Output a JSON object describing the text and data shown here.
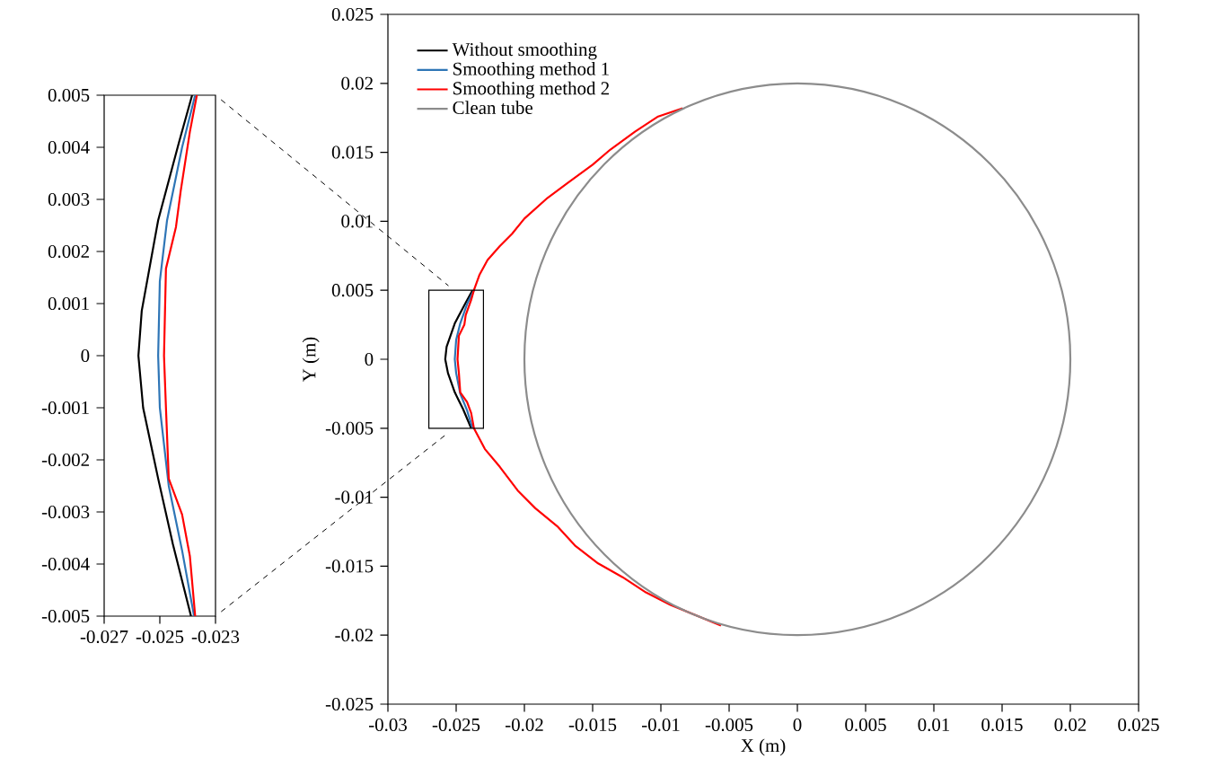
{
  "chart_data": [
    {
      "type": "line",
      "xlabel": "X (m)",
      "ylabel": "Y (m)",
      "xlim": [
        -0.03,
        0.025
      ],
      "ylim": [
        -0.025,
        0.025
      ],
      "xticks": [
        -0.03,
        -0.025,
        -0.02,
        -0.015,
        -0.01,
        -0.005,
        0,
        0.005,
        0.01,
        0.015,
        0.02,
        0.025
      ],
      "yticks": [
        -0.025,
        -0.02,
        -0.015,
        -0.01,
        -0.005,
        0,
        0.005,
        0.01,
        0.015,
        0.02,
        0.025
      ],
      "legend": "top left",
      "grid": false,
      "series": [
        {
          "name": "Without smoothing",
          "color": "#000000",
          "x": [
            -0.0238,
            -0.0243,
            -0.0251,
            -0.0257,
            -0.0258,
            -0.0256,
            -0.0251,
            -0.0245,
            -0.0239
          ],
          "values": [
            0.005,
            0.0041,
            0.0026,
            0.0009,
            0,
            -0.001,
            -0.0024,
            -0.0036,
            -0.005
          ]
        },
        {
          "name": "Smoothing method 1",
          "color": "#2e75b6",
          "x": [
            -0.0237,
            -0.0242,
            -0.0247,
            -0.025,
            -0.0251,
            -0.025,
            -0.0247,
            -0.0242,
            -0.0238
          ],
          "values": [
            0.005,
            0.004,
            0.0026,
            0.0014,
            0,
            -0.001,
            -0.0025,
            -0.0037,
            -0.005
          ]
        },
        {
          "name": "Smoothing method 2",
          "color": "#ff0000",
          "x": [
            -0.0084,
            -0.0102,
            -0.0119,
            -0.0137,
            -0.015,
            -0.0168,
            -0.0183,
            -0.02,
            -0.0209,
            -0.0218,
            -0.0227,
            -0.0233,
            -0.0237,
            -0.0239,
            -0.0243,
            -0.0244,
            -0.0248,
            -0.0249,
            -0.0248,
            -0.0247,
            -0.0242,
            -0.0239,
            -0.0237,
            -0.0229,
            -0.0218,
            -0.0205,
            -0.0192,
            -0.0176,
            -0.0163,
            -0.0146,
            -0.0128,
            -0.0111,
            -0.0093,
            -0.0056
          ],
          "values": [
            0.0182,
            0.0176,
            0.0165,
            0.0152,
            0.0141,
            0.0128,
            0.0117,
            0.0102,
            0.0091,
            0.0082,
            0.0072,
            0.0061,
            0.005,
            0.0043,
            0.0032,
            0.0025,
            0.0017,
            0,
            -0.001,
            -0.0024,
            -0.0031,
            -0.0039,
            -0.005,
            -0.0065,
            -0.0078,
            -0.0095,
            -0.0108,
            -0.0121,
            -0.0135,
            -0.0148,
            -0.0158,
            -0.0169,
            -0.0178,
            -0.0193
          ]
        }
      ],
      "annotations": [
        "Clean tube"
      ]
    },
    {
      "type": "line",
      "xlim": [
        -0.027,
        -0.023
      ],
      "ylim": [
        -0.005,
        0.005
      ],
      "xticks": [
        -0.027,
        -0.025,
        -0.023
      ],
      "yticks": [
        -0.005,
        -0.004,
        -0.003,
        -0.002,
        -0.001,
        0,
        0.001,
        0.002,
        0.003,
        0.004,
        0.005
      ],
      "series": [
        {
          "color": "#000000",
          "x": [
            -0.02384,
            -0.02431,
            -0.02506,
            -0.02565,
            -0.02577,
            -0.0256,
            -0.02506,
            -0.02453,
            -0.02388
          ],
          "values": [
            0.005,
            0.0041,
            0.0026,
            0.00086,
            0.0,
            -0.001,
            -0.00236,
            -0.00362,
            -0.005
          ]
        },
        {
          "color": "#2e75b6",
          "x": [
            -0.02373,
            -0.0242,
            -0.02474,
            -0.025,
            -0.02506,
            -0.025,
            -0.02468,
            -0.0242,
            -0.02377
          ],
          "values": [
            0.005,
            0.004,
            0.0026,
            0.00143,
            0.0,
            -0.001,
            -0.0025,
            -0.00374,
            -0.005
          ]
        },
        {
          "color": "#ff0000",
          "x": [
            -0.02367,
            -0.02392,
            -0.02425,
            -0.02442,
            -0.02478,
            -0.02485,
            -0.02478,
            -0.02468,
            -0.0242,
            -0.02392,
            -0.02373
          ],
          "values": [
            0.005,
            0.0043,
            0.00316,
            0.00247,
            0.00167,
            0.0,
            -0.001,
            -0.00236,
            -0.00305,
            -0.00385,
            -0.005
          ]
        }
      ]
    }
  ]
}
